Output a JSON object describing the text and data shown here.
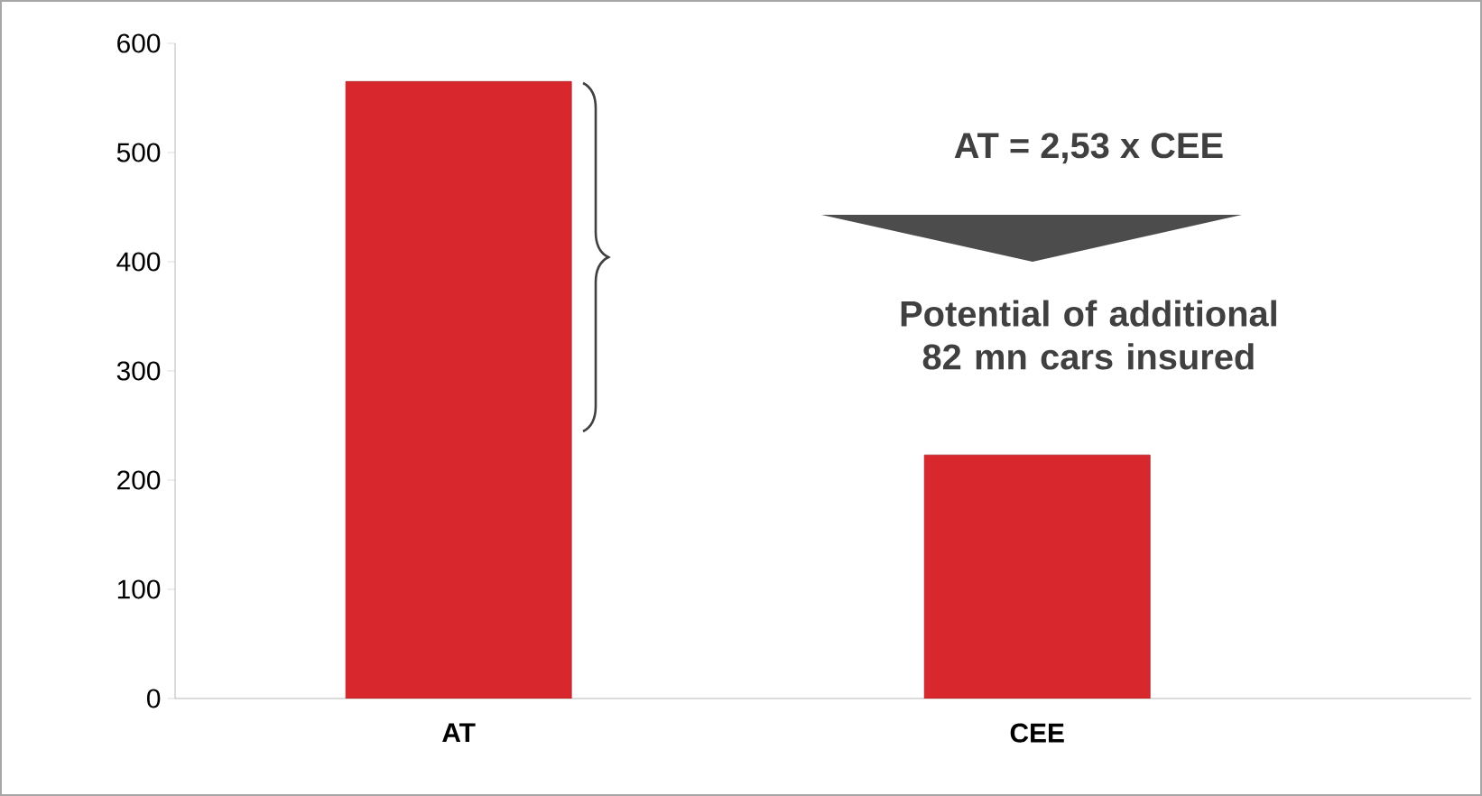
{
  "chart_data": {
    "type": "bar",
    "categories": [
      "AT",
      "CEE"
    ],
    "values": [
      565,
      223
    ],
    "color": "#d9272e",
    "ylim": [
      0,
      600
    ],
    "yticks": [
      0,
      100,
      200,
      300,
      400,
      500,
      600
    ],
    "grid": false,
    "annotations": [
      "AT = 2,53 x CEE",
      "Potential of additional 82 mn cars insured"
    ]
  }
}
